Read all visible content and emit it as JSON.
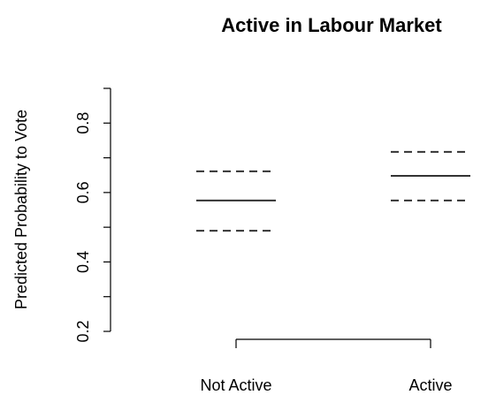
{
  "chart_data": {
    "type": "interval",
    "title": "Active in Labour Market",
    "ylabel": "Predicted Probability to Vote",
    "categories": [
      "Not Active",
      "Active"
    ],
    "values": [
      0.577,
      0.648
    ],
    "lower": [
      0.49,
      0.577
    ],
    "upper": [
      0.661,
      0.717
    ],
    "color": "#333333",
    "ylim": [
      0.2,
      0.9
    ],
    "yticks": [
      0.2,
      0.4,
      0.6,
      0.8
    ],
    "yminor_ticks": [
      0.3,
      0.5,
      0.7,
      0.9
    ]
  }
}
